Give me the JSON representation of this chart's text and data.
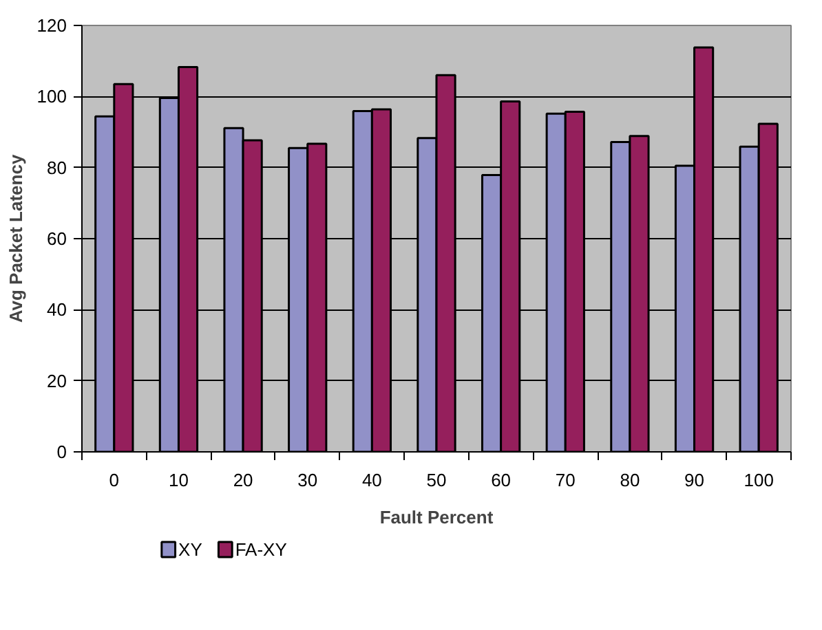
{
  "chart_data": {
    "type": "bar",
    "xlabel": "Fault Percent",
    "ylabel": "Avg Packet Latency",
    "categories": [
      "0",
      "10",
      "20",
      "30",
      "40",
      "50",
      "60",
      "70",
      "80",
      "90",
      "100"
    ],
    "series": [
      {
        "name": "XY",
        "color": "#9191c8",
        "values": [
          94.4,
          99.6,
          91.1,
          85.5,
          95.9,
          88.3,
          77.9,
          95.2,
          87.2,
          80.5,
          85.9
        ]
      },
      {
        "name": "FA-XY",
        "color": "#951f5c",
        "values": [
          103.5,
          108.3,
          87.7,
          86.7,
          96.4,
          106.0,
          98.6,
          95.7,
          88.9,
          113.8,
          92.3
        ]
      }
    ],
    "ylim": [
      0,
      120
    ],
    "yticks": [
      0,
      20,
      40,
      60,
      80,
      100,
      120
    ],
    "grid": "y",
    "legend": "bottom left"
  }
}
